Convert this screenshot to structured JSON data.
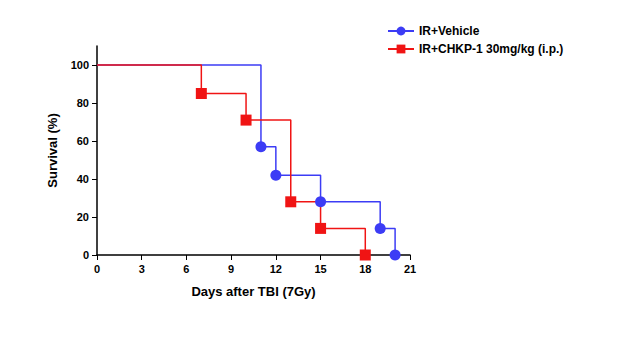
{
  "chart_data": {
    "type": "line",
    "xlabel": "Days after TBI (7Gy)",
    "ylabel": "Survival (%)",
    "xlim": [
      0,
      21
    ],
    "xticks": [
      0,
      3,
      6,
      9,
      12,
      15,
      18,
      21
    ],
    "ylim": [
      0,
      110
    ],
    "yticks": [
      0,
      20,
      40,
      60,
      80,
      100
    ],
    "grid": false,
    "legend": "upper right",
    "line_style": "step",
    "series": [
      {
        "name": "IR+Vehicle",
        "color": "#3c3cf5",
        "marker": "circle",
        "x": [
          0,
          11,
          12,
          15,
          19,
          20
        ],
        "values": [
          100,
          57,
          42,
          28,
          14,
          0
        ]
      },
      {
        "name": "IR+CHKP-1 30mg/kg (i.p.)",
        "color": "#f01414",
        "marker": "square",
        "x": [
          0,
          7,
          10,
          13,
          15,
          18
        ],
        "values": [
          100,
          85,
          71,
          28,
          14,
          0
        ]
      }
    ]
  }
}
